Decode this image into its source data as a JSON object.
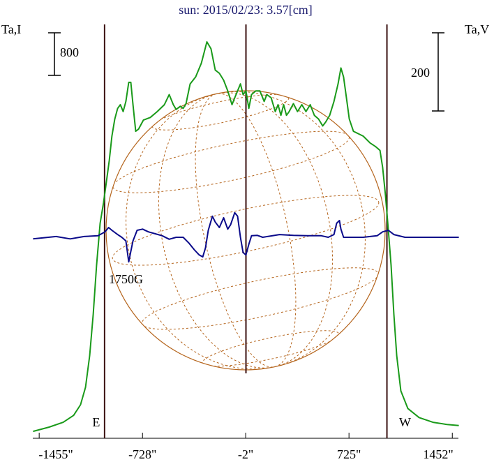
{
  "chart_data": {
    "type": "line",
    "title": "sun: 2015/02/23: 3.57[cm]",
    "y_label": "Ta,I",
    "y2_label": "Ta,V",
    "annotation": "1750G",
    "xlim": [
      -1500,
      1495
    ],
    "xticks": [
      {
        "value": -1455,
        "label": "-1455\""
      },
      {
        "value": -728,
        "label": "-728\""
      },
      {
        "value": -2,
        "label": "-2\""
      },
      {
        "value": 725,
        "label": "725\""
      },
      {
        "value": 1452,
        "label": "1452\""
      }
    ],
    "ylim": [
      0,
      7870
    ],
    "y2lim": [
      -514,
      557
    ],
    "scale_bars": [
      {
        "value": 800,
        "axis": "y"
      },
      {
        "value": 200,
        "axis": "y2"
      }
    ],
    "vertical_lines": [
      {
        "x": -995,
        "label": "E"
      },
      {
        "x": 0
      },
      {
        "x": 992,
        "label": "W"
      }
    ],
    "series": [
      {
        "color": "#1a9a1a",
        "axis": "y",
        "x": [
          -1498,
          -1385,
          -1286,
          -1213,
          -1164,
          -1129,
          -1100,
          -1075,
          -1051,
          -1026,
          -1002,
          -982,
          -962,
          -943,
          -923,
          -903,
          -884,
          -864,
          -845,
          -825,
          -810,
          -795,
          -776,
          -756,
          -722,
          -673,
          -624,
          -574,
          -540,
          -511,
          -491,
          -462,
          -442,
          -422,
          -393,
          -354,
          -314,
          -275,
          -246,
          -216,
          -187,
          -157,
          -128,
          -98,
          -79,
          -59,
          -39,
          -20,
          0,
          20,
          39,
          69,
          98,
          128,
          147,
          177,
          206,
          226,
          246,
          265,
          285,
          304,
          334,
          363,
          393,
          422,
          452,
          481,
          511,
          540,
          560,
          589,
          619,
          648,
          668,
          687,
          707,
          727,
          756,
          825,
          874,
          913,
          943,
          962,
          982,
          1002,
          1021,
          1041,
          1061,
          1090,
          1139,
          1218,
          1316,
          1414,
          1498
        ],
        "values": [
          130,
          210,
          300,
          430,
          630,
          960,
          1550,
          2330,
          3250,
          4040,
          4430,
          4820,
          5220,
          5680,
          6000,
          6200,
          6270,
          6140,
          6330,
          6690,
          6690,
          6270,
          5770,
          5810,
          5980,
          6030,
          6140,
          6270,
          6460,
          6270,
          6180,
          6240,
          6200,
          6290,
          6660,
          6790,
          7050,
          7450,
          7320,
          6920,
          6860,
          6730,
          6530,
          6270,
          6400,
          6530,
          6660,
          6460,
          6530,
          6200,
          6460,
          6530,
          6530,
          6330,
          6460,
          6400,
          6140,
          6270,
          6070,
          6270,
          6070,
          6140,
          6290,
          6140,
          6270,
          6140,
          6270,
          6070,
          6000,
          5870,
          5940,
          6070,
          6330,
          6660,
          6960,
          6790,
          6400,
          6000,
          5770,
          5680,
          5550,
          5480,
          5410,
          5090,
          4560,
          3910,
          3250,
          2330,
          1550,
          890,
          560,
          390,
          300,
          260,
          240
        ]
      },
      {
        "color": "#0a0a8a",
        "axis": "y2",
        "x": [
          -1498,
          -1336,
          -1237,
          -1139,
          -1041,
          -992,
          -967,
          -943,
          -903,
          -874,
          -845,
          -825,
          -810,
          -795,
          -766,
          -727,
          -687,
          -638,
          -589,
          -540,
          -491,
          -442,
          -403,
          -363,
          -329,
          -304,
          -285,
          -265,
          -236,
          -216,
          -187,
          -157,
          -128,
          -108,
          -79,
          -59,
          -39,
          -20,
          0,
          20,
          39,
          79,
          118,
          187,
          236,
          334,
          432,
          530,
          579,
          619,
          638,
          658,
          668,
          687,
          727,
          825,
          923,
          962,
          1002,
          1041,
          1119,
          1218,
          1316,
          1498
        ],
        "values": [
          -4,
          2,
          -4,
          2,
          4,
          14,
          25,
          18,
          7,
          0,
          -9,
          -63,
          -36,
          -9,
          18,
          21,
          14,
          9,
          4,
          -5,
          0,
          0,
          -14,
          -32,
          -45,
          -50,
          -27,
          18,
          54,
          39,
          25,
          50,
          21,
          32,
          63,
          54,
          0,
          -39,
          -45,
          -18,
          4,
          5,
          0,
          4,
          7,
          5,
          4,
          4,
          0,
          7,
          36,
          43,
          21,
          0,
          0,
          0,
          4,
          14,
          18,
          7,
          0,
          0,
          0,
          0
        ]
      }
    ]
  }
}
